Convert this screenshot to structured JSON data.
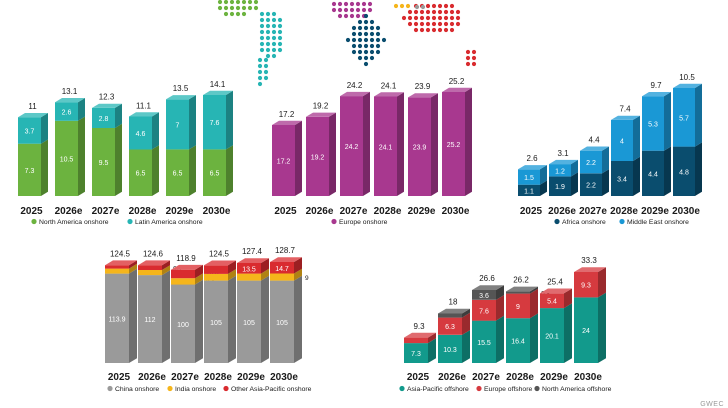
{
  "colors": {
    "na": "#6cb33f",
    "la": "#27b5b4",
    "eu": "#a8388f",
    "af": "#0a4d6e",
    "me": "#1a98d5",
    "cn": "#9a9a9a",
    "in": "#f5b51b",
    "oap": "#d92b2f",
    "apo": "#129a8c",
    "euo": "#d63a3f",
    "nao": "#555555",
    "cap": "#8a8a8a",
    "text_dark": "#1a1a1a"
  },
  "brand": "GWEC",
  "chart_data": [
    {
      "id": "americas",
      "type": "bar",
      "stacked": true,
      "categories": [
        "2025",
        "2026e",
        "2027e",
        "2028e",
        "2029e",
        "2030e"
      ],
      "series": [
        {
          "name": "North America onshore",
          "color_key": "na",
          "values": [
            7.3,
            10.5,
            9.5,
            6.5,
            6.5,
            6.5
          ]
        },
        {
          "name": "Latin America onshore",
          "color_key": "la",
          "values": [
            3.7,
            2.6,
            2.8,
            4.6,
            7,
            7.6
          ]
        }
      ],
      "totals": [
        11,
        13.1,
        12.3,
        11.1,
        13.5,
        14.1
      ],
      "ylim": [
        0,
        16
      ]
    },
    {
      "id": "europe",
      "type": "bar",
      "stacked": true,
      "categories": [
        "2025",
        "2026e",
        "2027e",
        "2028e",
        "2029e",
        "2030e"
      ],
      "series": [
        {
          "name": "Europe onshore",
          "color_key": "eu",
          "values": [
            17.2,
            19.2,
            24.2,
            24.1,
            23.9,
            25.2
          ]
        }
      ],
      "totals": [
        17.2,
        19.2,
        24.2,
        24.1,
        23.9,
        25.2
      ],
      "ylim": [
        0,
        30
      ]
    },
    {
      "id": "africa_me",
      "type": "bar",
      "stacked": true,
      "categories": [
        "2025",
        "2026e",
        "2027e",
        "2028e",
        "2029e",
        "2030e"
      ],
      "series": [
        {
          "name": "Africa onshore",
          "color_key": "af",
          "values": [
            1.1,
            1.9,
            2.2,
            3.4,
            4.4,
            4.8
          ]
        },
        {
          "name": "Middle East onshore",
          "color_key": "me",
          "values": [
            1.5,
            1.2,
            2.2,
            4,
            5.3,
            5.7
          ]
        }
      ],
      "totals": [
        2.6,
        3.1,
        4.4,
        7.4,
        9.7,
        10.5
      ],
      "ylim": [
        0,
        12
      ]
    },
    {
      "id": "asia_onshore",
      "type": "bar",
      "stacked": true,
      "categories": [
        "2025",
        "2026e",
        "2027e",
        "2028e",
        "2029e",
        "2030e"
      ],
      "series": [
        {
          "name": "China onshore",
          "color_key": "cn",
          "values": [
            113.9,
            112,
            100,
            105,
            105,
            105
          ]
        },
        {
          "name": "India onshore",
          "color_key": "in",
          "values": [
            6.4,
            6.5,
            8.1,
            8.5,
            8.9,
            9
          ]
        },
        {
          "name": "Other Asia-Pacific onshore",
          "color_key": "oap",
          "values": [
            4.3,
            6.1,
            10.8,
            11,
            13.5,
            14.7
          ]
        }
      ],
      "totals": [
        124.5,
        124.6,
        118.9,
        124.5,
        127.4,
        128.7
      ],
      "ylim": [
        0,
        140
      ]
    },
    {
      "id": "offshore",
      "type": "bar",
      "stacked": true,
      "categories": [
        "2025",
        "2026e",
        "2027e",
        "2028e",
        "2029e",
        "2030e"
      ],
      "series": [
        {
          "name": "Asia-Pacific offshore",
          "color_key": "apo",
          "values": [
            7.3,
            10.3,
            15.5,
            16.4,
            20.1,
            24
          ]
        },
        {
          "name": "Europe offshore",
          "color_key": "euo",
          "values": [
            2,
            6.3,
            7.6,
            9,
            5.4,
            9.3
          ]
        },
        {
          "name": "North America offshore",
          "color_key": "nao",
          "values": [
            0,
            1.5,
            3.6,
            0.8,
            0,
            0
          ]
        }
      ],
      "totals": [
        9.3,
        18,
        26.6,
        26.2,
        25.4,
        33.3
      ],
      "ylim": [
        0,
        36
      ]
    }
  ]
}
